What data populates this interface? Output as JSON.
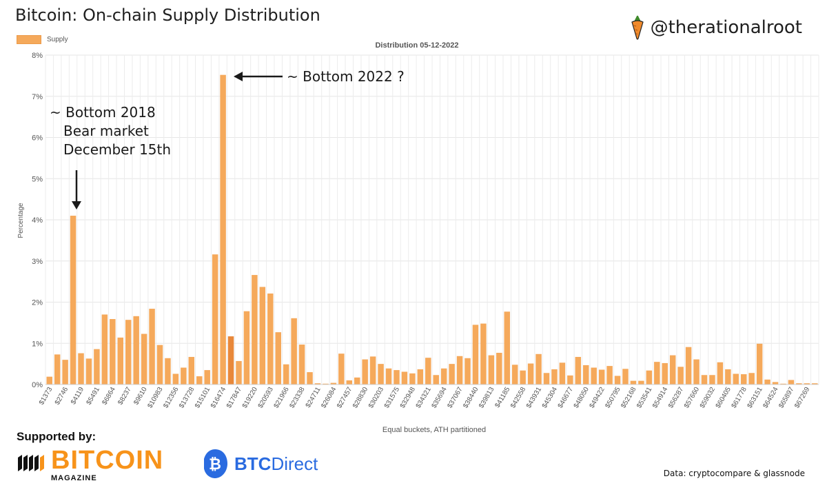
{
  "header": {
    "title": "Bitcoin: On-chain Supply Distribution",
    "handle": "@therationalroot"
  },
  "legend": {
    "label": "Supply"
  },
  "chart_data": {
    "type": "bar",
    "title": "Distribution 05-12-2022",
    "xlabel": "Equal buckets, ATH partitioned",
    "ylabel": "Percentage",
    "ylim": [
      0,
      8
    ],
    "yticks": [
      "0%",
      "1%",
      "2%",
      "3%",
      "4%",
      "5%",
      "6%",
      "7%",
      "8%"
    ],
    "grid": true,
    "legend_position": "top-left",
    "series": [
      {
        "name": "Supply",
        "color": "#F5A95B"
      }
    ],
    "highlight_color": "#E8883A",
    "highlight_index": 23,
    "xtick_labels": [
      "$1373",
      "$2746",
      "$4119",
      "$5491",
      "$6864",
      "$8237",
      "$9610",
      "$10983",
      "$12356",
      "$13728",
      "$15101",
      "$16474",
      "$17847",
      "$19220",
      "$20593",
      "$21966",
      "$23338",
      "$24711",
      "$26084",
      "$27457",
      "$28830",
      "$30203",
      "$31575",
      "$32948",
      "$34321",
      "$35694",
      "$37067",
      "$38440",
      "$39813",
      "$41185",
      "$42558",
      "$43931",
      "$45304",
      "$46677",
      "$48050",
      "$49422",
      "$50795",
      "$52168",
      "$53541",
      "$54914",
      "$56287",
      "$57660",
      "$59032",
      "$60405",
      "$61778",
      "$63151",
      "$64524",
      "$65897",
      "$67269"
    ],
    "values": [
      0.19,
      0.73,
      0.6,
      4.1,
      0.76,
      0.63,
      0.86,
      1.7,
      1.59,
      1.14,
      1.57,
      1.66,
      1.23,
      1.84,
      0.96,
      0.64,
      0.26,
      0.41,
      0.67,
      0.2,
      0.35,
      3.16,
      7.52,
      1.17,
      0.57,
      1.78,
      2.66,
      2.37,
      2.21,
      1.27,
      0.49,
      1.61,
      0.97,
      0.3,
      0.03,
      0.02,
      0.04,
      0.75,
      0.1,
      0.17,
      0.61,
      0.68,
      0.5,
      0.39,
      0.35,
      0.31,
      0.27,
      0.37,
      0.65,
      0.23,
      0.39,
      0.5,
      0.69,
      0.64,
      1.45,
      1.48,
      0.71,
      0.77,
      1.77,
      0.48,
      0.34,
      0.51,
      0.74,
      0.28,
      0.37,
      0.53,
      0.22,
      0.67,
      0.47,
      0.41,
      0.36,
      0.45,
      0.21,
      0.38,
      0.09,
      0.09,
      0.34,
      0.55,
      0.52,
      0.71,
      0.43,
      0.91,
      0.61,
      0.23,
      0.23,
      0.54,
      0.37,
      0.26,
      0.25,
      0.28,
      0.99,
      0.12,
      0.06,
      0.02,
      0.11,
      0.03,
      0.03,
      0.03
    ]
  },
  "annotations": {
    "bottom_2018": [
      "~ Bottom 2018",
      "Bear market",
      "December 15th"
    ],
    "bottom_2022": "~ Bottom 2022 ?"
  },
  "footer": {
    "supported_by": "Supported by:",
    "bm_name": "BITCOIN",
    "bm_sub": "MAGAZINE",
    "btc_direct_bold": "BTC",
    "btc_direct_rest": "Direct",
    "credit": "Data: cryptocompare & glassnode"
  }
}
